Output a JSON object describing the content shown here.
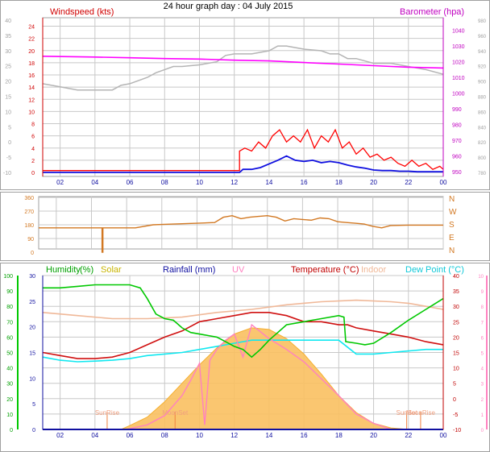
{
  "title": "24 hour graph day : 04 July 2015",
  "colors": {
    "grid": "#c8c8c8",
    "border": "#a0a0a0",
    "wind_avg": "#1010e0",
    "wind_gust": "#ff0000",
    "barometer": "#ff00ff",
    "baro_grey": "#b4b4b4",
    "wind_dir": "#d27822",
    "humidity": "#00c800",
    "solar": "#f5b030",
    "solar_fill": "#fac060",
    "rainfall": "#1010a0",
    "uv": "#ff80c0",
    "temperature": "#d01010",
    "indoor": "#f0b898",
    "dewpoint": "#10e8f0",
    "sun": "#f08040"
  },
  "chart_data": [
    {
      "id": "wind_baro",
      "type": "line",
      "left_axis_title": "Windspeed (kts)",
      "right_axis_title": "Barometer (hpa)",
      "x_ticks": [
        "02",
        "04",
        "06",
        "08",
        "10",
        "12",
        "14",
        "16",
        "18",
        "20",
        "22",
        "00"
      ],
      "y_left_red_ticks": [
        "24",
        "22",
        "20",
        "18",
        "16",
        "14",
        "12",
        "10",
        "8",
        "6",
        "4",
        "2",
        "0"
      ],
      "y_left_grey_ticks": [
        "40",
        "35",
        "30",
        "25",
        "20",
        "15",
        "10",
        "5",
        "0",
        "-5",
        "-10"
      ],
      "y_right_ticks": [
        "1040",
        "1030",
        "1020",
        "1010",
        "1000",
        "990",
        "980",
        "970",
        "960",
        "950"
      ],
      "y_right_grey_ticks": [
        "980",
        "960",
        "940",
        "920",
        "900",
        "880",
        "860",
        "840",
        "820",
        "800",
        "780"
      ],
      "xlim": [
        1,
        24
      ],
      "ylim_left": [
        0,
        25
      ],
      "ylim_right": [
        947,
        1048
      ],
      "series": [
        {
          "name": "Windspeed (kts)",
          "color_key": "wind_gust",
          "x": [
            1,
            12.3,
            12.3,
            12.6,
            13,
            13.4,
            13.8,
            14.2,
            14.6,
            15,
            15.4,
            15.8,
            16.2,
            16.6,
            17,
            17.4,
            17.8,
            18.2,
            18.6,
            19,
            19.4,
            19.8,
            20.2,
            20.6,
            21,
            21.4,
            21.8,
            22.2,
            22.6,
            23,
            23.4,
            23.8,
            24
          ],
          "y": [
            0.3,
            0.3,
            3.5,
            4,
            3.5,
            5,
            4,
            6,
            7,
            5,
            6,
            5,
            7,
            4,
            6,
            5,
            7,
            4,
            5,
            3,
            4,
            2.5,
            3,
            2,
            2.5,
            1.5,
            1,
            2,
            1,
            1.5,
            0.5,
            1,
            0.5
          ]
        },
        {
          "name": "Average windspeed",
          "color_key": "wind_avg",
          "x": [
            1,
            12.3,
            12.5,
            13,
            13.5,
            14,
            14.5,
            15,
            15.5,
            16,
            16.5,
            17,
            17.5,
            18,
            18.5,
            19,
            19.5,
            20,
            20.5,
            21,
            21.5,
            22,
            22.5,
            23,
            23.5,
            24
          ],
          "y": [
            0,
            0,
            0.5,
            0.5,
            0.8,
            1.4,
            2,
            2.7,
            2,
            1.8,
            2,
            1.6,
            1.8,
            1.6,
            1.2,
            0.9,
            0.7,
            0.4,
            0.3,
            0.3,
            0.2,
            0.2,
            0.1,
            0.1,
            0.1,
            0.1
          ]
        },
        {
          "name": "Barometer (hpa)",
          "color_key": "barometer",
          "x": [
            1,
            4,
            6,
            8,
            10,
            12,
            14,
            16,
            18,
            20,
            22,
            24
          ],
          "y": [
            1023.5,
            1023,
            1022.5,
            1022,
            1021.7,
            1021,
            1020.5,
            1019.5,
            1018.5,
            1017.5,
            1016.5,
            1016
          ]
        },
        {
          "name": "Grey barometer",
          "color_key": "baro_grey",
          "x": [
            1,
            2,
            3,
            4,
            5,
            5.5,
            6,
            7,
            7.5,
            8,
            8.5,
            9,
            10,
            11,
            11.5,
            12,
            13,
            14,
            14.5,
            15,
            16,
            17,
            17.5,
            18,
            18.5,
            19,
            20,
            21,
            22,
            23,
            24
          ],
          "y": [
            1006,
            1004,
            1002,
            1002,
            1002,
            1005,
            1006,
            1010,
            1013,
            1015,
            1017,
            1017,
            1018,
            1020,
            1024,
            1025,
            1025,
            1027,
            1030,
            1030,
            1028,
            1027,
            1025,
            1025,
            1022,
            1022,
            1019,
            1019,
            1017,
            1015,
            1012
          ]
        }
      ]
    },
    {
      "id": "wind_dir",
      "type": "line",
      "x_ticks": [
        "02",
        "04",
        "06",
        "08",
        "10",
        "12",
        "14",
        "16",
        "18",
        "20",
        "22",
        "00"
      ],
      "y_left_ticks": [
        "360",
        "270",
        "180",
        "90",
        "0"
      ],
      "y_right_ticks": [
        "N",
        "W",
        "S",
        "E",
        "N"
      ],
      "xlim": [
        1,
        24
      ],
      "ylim": [
        0,
        360
      ],
      "series": [
        {
          "name": "Wind direction",
          "color_key": "wind_dir",
          "x": [
            1,
            4.6,
            4.6,
            4.65,
            4.65,
            6.5,
            7.5,
            8,
            10,
            11,
            11.5,
            12,
            12.5,
            13,
            13.5,
            14,
            14.5,
            15,
            15.5,
            16,
            16.5,
            17,
            17.5,
            18,
            18.5,
            19,
            19.5,
            20,
            20.5,
            21,
            22,
            23,
            24
          ],
          "y": [
            160,
            160,
            0,
            0,
            160,
            160,
            180,
            182,
            190,
            195,
            230,
            240,
            220,
            230,
            235,
            240,
            230,
            205,
            220,
            215,
            210,
            225,
            220,
            200,
            195,
            190,
            185,
            170,
            160,
            175,
            178,
            178,
            178
          ]
        }
      ]
    },
    {
      "id": "temp_hum",
      "type": "line",
      "labels": {
        "humidity": "Humidity",
        "humidity_unit": "(%)",
        "solar": "Solar",
        "rainfall": "Rainfall (mm)",
        "uv": "UV",
        "temperature": "Temperature (°C)",
        "indoor": "Indoor",
        "dewpoint": "Dew Point (°C)",
        "sunrise": "SunRise",
        "sunset": "SunSet",
        "moonset": "MoonSet",
        "moonrise": "MoonRise"
      },
      "x_ticks": [
        "02",
        "04",
        "06",
        "08",
        "10",
        "12",
        "14",
        "16",
        "18",
        "20",
        "22",
        "00"
      ],
      "y_hum_ticks": [
        "100",
        "90",
        "80",
        "70",
        "60",
        "50",
        "40",
        "30",
        "20",
        "10",
        "0"
      ],
      "y_rain_ticks": [
        "30",
        "25",
        "20",
        "15",
        "10",
        "5",
        "0"
      ],
      "y_temp_ticks": [
        "40",
        "35",
        "30",
        "25",
        "20",
        "15",
        "10",
        "5",
        "0",
        "-5",
        "-10"
      ],
      "y_uv_ticks": [
        "10",
        "9",
        "8",
        "7",
        "6",
        "5",
        "4",
        "3",
        "2",
        "1",
        "0"
      ],
      "xlim": [
        1,
        24
      ],
      "ylim_humidity": [
        0,
        100
      ],
      "ylim_temp": [
        -10,
        40
      ],
      "series": [
        {
          "name": "Humidity",
          "color_key": "humidity",
          "x": [
            1,
            2,
            3,
            4,
            5,
            6,
            6.6,
            7,
            7.5,
            8,
            8.5,
            9,
            9.5,
            10,
            10.5,
            11,
            11.5,
            12,
            12.5,
            13,
            13.5,
            14,
            14.5,
            15,
            16,
            17,
            18,
            18.3,
            18.4,
            19,
            19.5,
            20,
            21,
            22,
            23,
            24
          ],
          "y": [
            92,
            92,
            93,
            94,
            94,
            94,
            92,
            85,
            75,
            72,
            71,
            66,
            63,
            62,
            61,
            60,
            57,
            54,
            52,
            47,
            52,
            58,
            63,
            68,
            70,
            72,
            74,
            73,
            57,
            56,
            55,
            56,
            63,
            71,
            78,
            85
          ]
        },
        {
          "name": "Solar",
          "color_key": "solar",
          "x": [
            5.5,
            6,
            7,
            8,
            9,
            10,
            11,
            12,
            13,
            14,
            15,
            16,
            17,
            18,
            19,
            20,
            21,
            22
          ],
          "y": [
            0,
            25,
            80,
            180,
            300,
            420,
            530,
            620,
            660,
            650,
            590,
            490,
            360,
            220,
            110,
            40,
            10,
            0
          ]
        },
        {
          "name": "UV",
          "color_key": "uv",
          "x": [
            5.8,
            7,
            8,
            9,
            9.5,
            10,
            10.3,
            10.6,
            11,
            11.5,
            12,
            12.5,
            13,
            14,
            15,
            16,
            17,
            18,
            19,
            20,
            21
          ],
          "y": [
            0,
            0.3,
            0.9,
            2.2,
            3.2,
            4.3,
            0.3,
            4.5,
            5.2,
            5.8,
            6.2,
            4.7,
            6.8,
            5.9,
            5.2,
            4.4,
            3.3,
            2.2,
            1,
            0.4,
            0
          ]
        },
        {
          "name": "Temperature",
          "color_key": "temperature",
          "x": [
            1,
            2,
            3,
            4,
            5,
            6,
            7,
            8,
            9,
            10,
            11,
            12,
            13,
            14,
            15,
            16,
            17,
            18,
            18.5,
            19,
            20,
            21,
            22,
            23,
            24
          ],
          "y": [
            15,
            14,
            13,
            13,
            13.5,
            15,
            17.5,
            20,
            22,
            25,
            26,
            27,
            28,
            28,
            27,
            25,
            25,
            24,
            24,
            23,
            22,
            21,
            20,
            18.5,
            17.5
          ]
        },
        {
          "name": "Indoor",
          "color_key": "indoor",
          "x": [
            1,
            3,
            5,
            7,
            9,
            11,
            13,
            15,
            17,
            19,
            21,
            22,
            23,
            24
          ],
          "y": [
            28,
            27,
            26,
            26,
            26.5,
            28,
            29,
            30.5,
            31.5,
            32,
            31.5,
            31,
            30,
            29
          ]
        },
        {
          "name": "Dew Point",
          "color_key": "dewpoint",
          "x": [
            1,
            2,
            3,
            4,
            5,
            6,
            7,
            8,
            9,
            10,
            11,
            12,
            13,
            14,
            15,
            16,
            17,
            18,
            19,
            20,
            21,
            22,
            23,
            24
          ],
          "y": [
            13.5,
            12.5,
            12,
            12.2,
            12.5,
            13,
            14,
            14.5,
            15,
            16,
            17,
            18,
            19,
            19,
            19,
            19,
            19,
            19,
            14.5,
            14.5,
            15,
            15.5,
            16,
            16
          ]
        },
        {
          "name": "Rainfall",
          "color_key": "rainfall",
          "x": [
            1,
            24
          ],
          "y": [
            0,
            0
          ]
        }
      ],
      "markers": [
        {
          "label_key": "sunrise",
          "x": 4.7
        },
        {
          "label_key": "moonset",
          "x": 8.6
        },
        {
          "label_key": "sunset",
          "x": 21.9
        },
        {
          "label_key": "moonrise",
          "x": 22.7
        }
      ]
    }
  ]
}
